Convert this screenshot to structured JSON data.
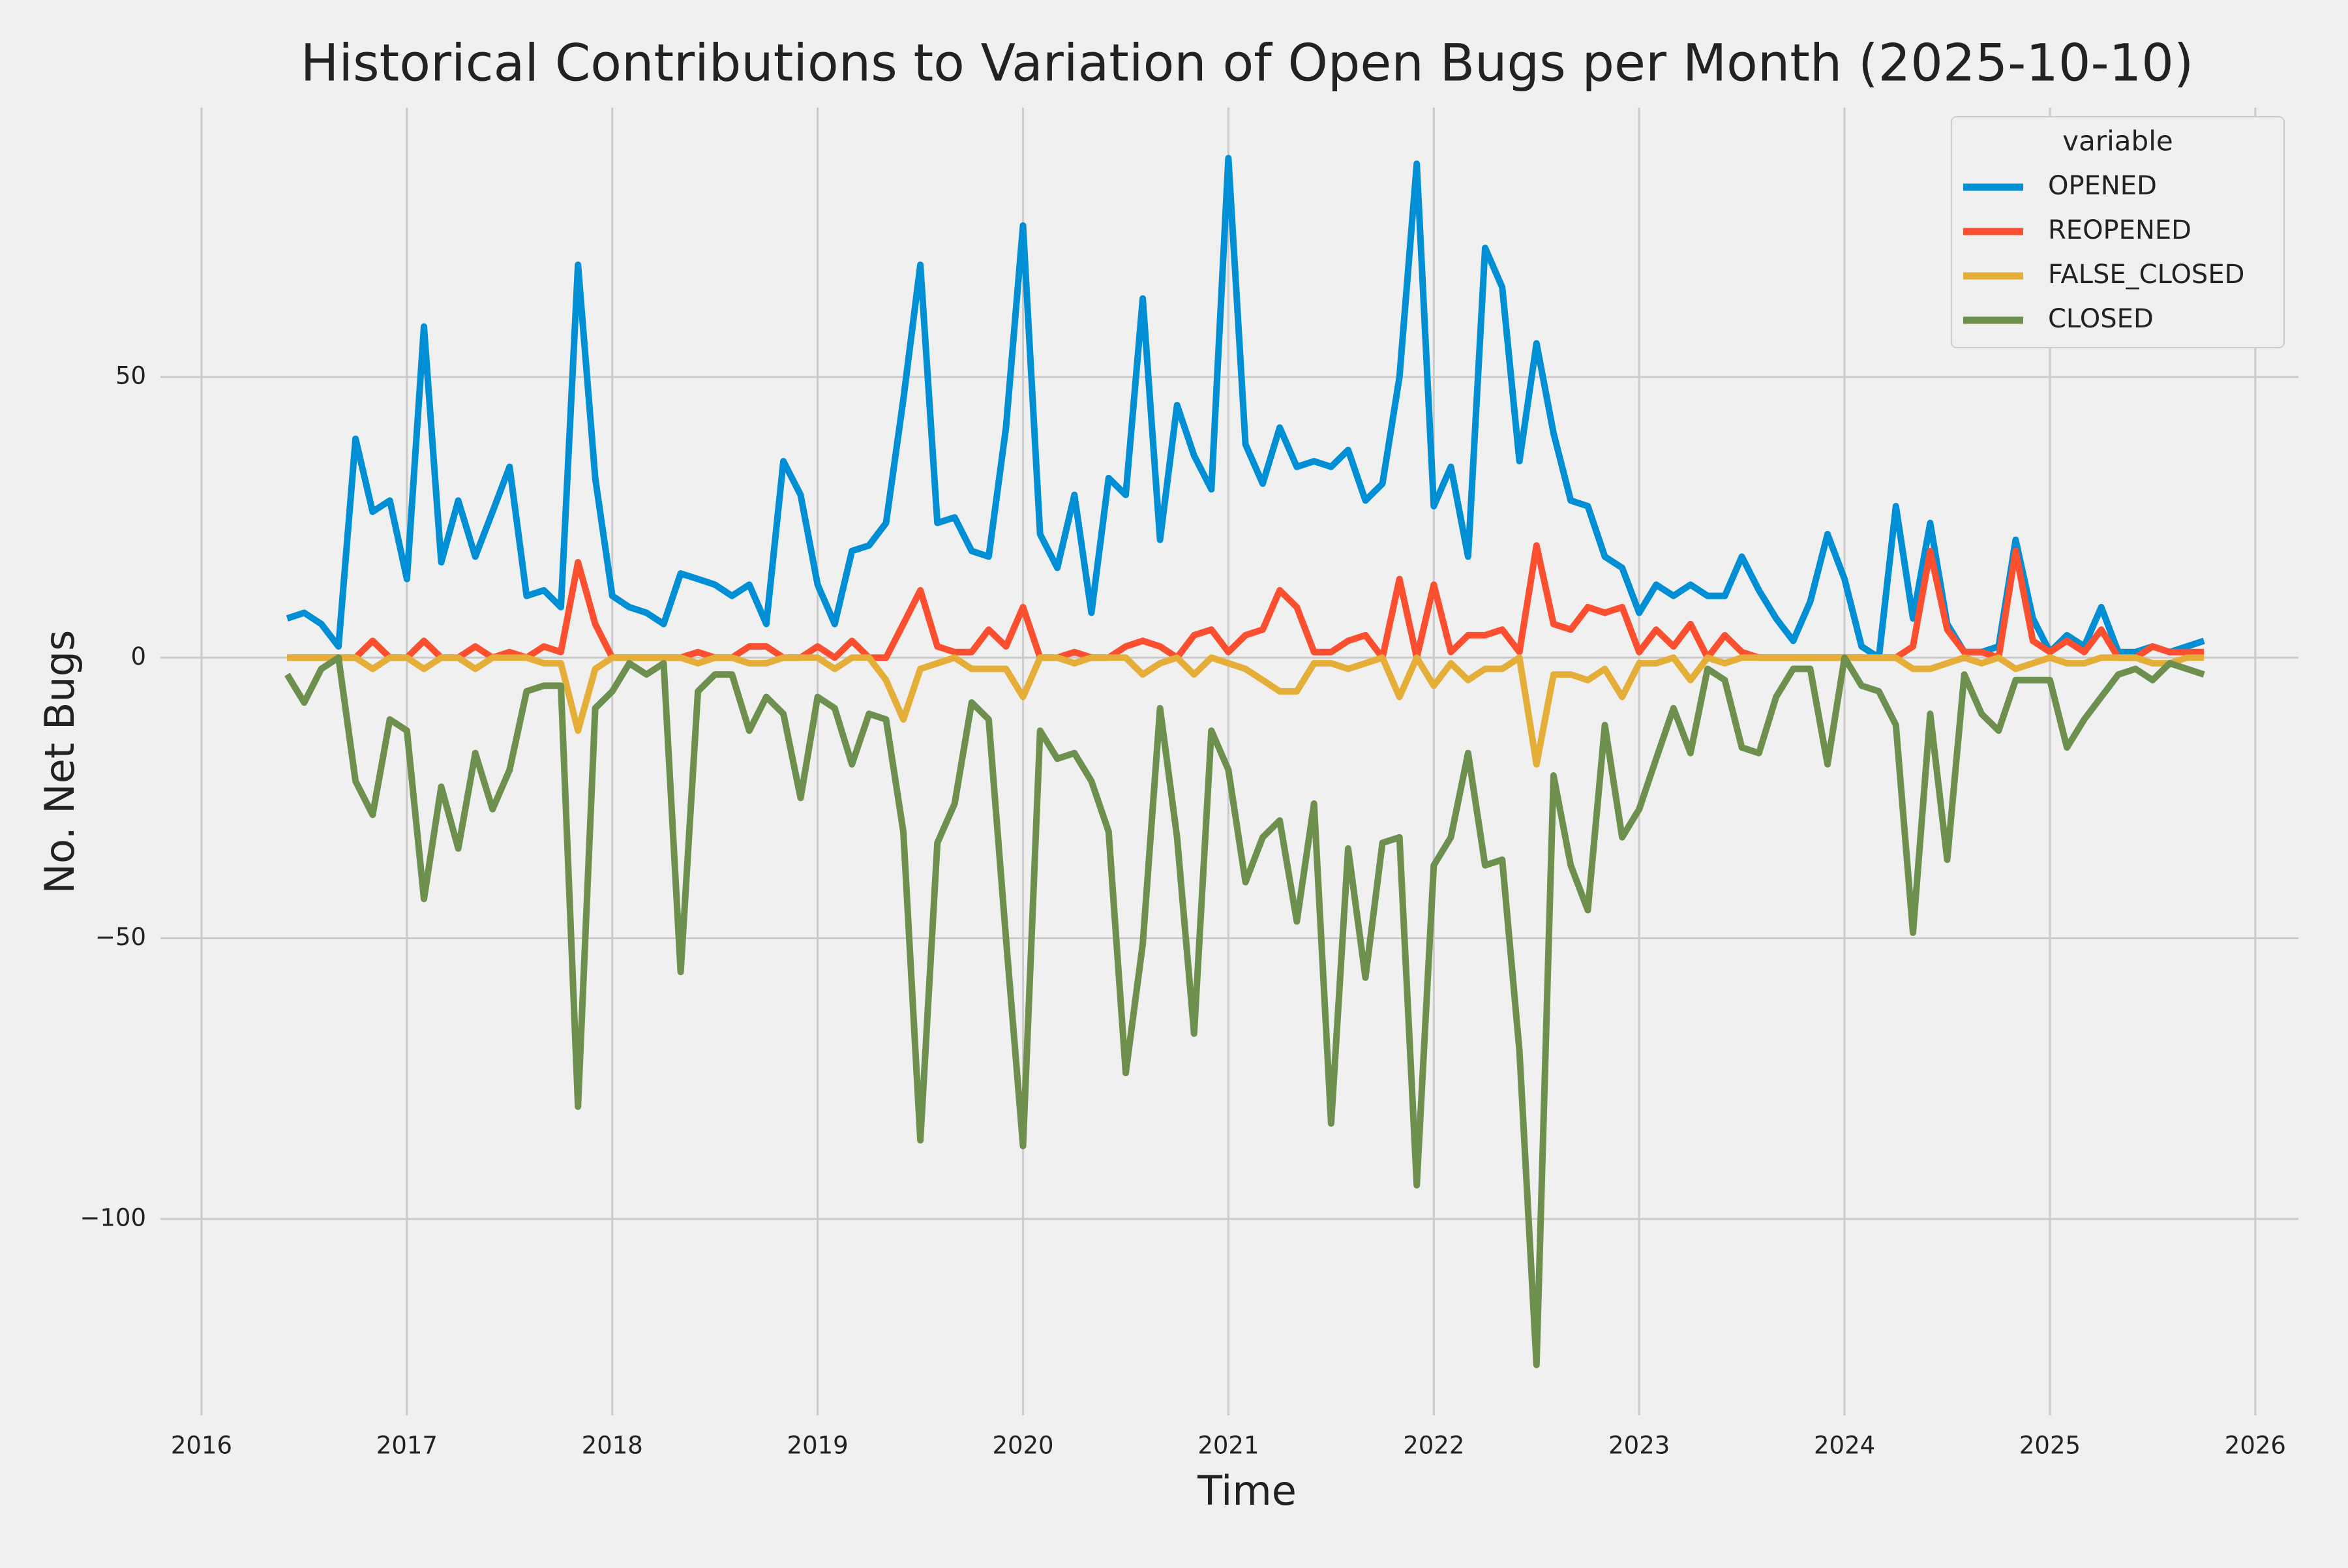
{
  "chart_data": {
    "type": "line",
    "title": "Historical Contributions to Variation of Open Bugs per Month (2025-10-10)",
    "x_label": "Time",
    "y_label": "No. Net Bugs",
    "x": [
      2016.417,
      2016.5,
      2016.583,
      2016.667,
      2016.75,
      2016.833,
      2016.917,
      2017,
      2017.083,
      2017.167,
      2017.25,
      2017.333,
      2017.417,
      2017.5,
      2017.583,
      2017.667,
      2017.75,
      2017.833,
      2017.917,
      2018,
      2018.083,
      2018.167,
      2018.25,
      2018.333,
      2018.417,
      2018.5,
      2018.583,
      2018.667,
      2018.75,
      2018.833,
      2018.917,
      2019,
      2019.083,
      2019.167,
      2019.25,
      2019.333,
      2019.417,
      2019.5,
      2019.583,
      2019.667,
      2019.75,
      2019.833,
      2019.917,
      2020,
      2020.083,
      2020.167,
      2020.25,
      2020.333,
      2020.417,
      2020.5,
      2020.583,
      2020.667,
      2020.75,
      2020.833,
      2020.917,
      2021,
      2021.083,
      2021.167,
      2021.25,
      2021.333,
      2021.417,
      2021.5,
      2021.583,
      2021.667,
      2021.75,
      2021.833,
      2021.917,
      2022,
      2022.083,
      2022.167,
      2022.25,
      2022.333,
      2022.417,
      2022.5,
      2022.583,
      2022.667,
      2022.75,
      2022.833,
      2022.917,
      2023,
      2023.083,
      2023.167,
      2023.25,
      2023.333,
      2023.417,
      2023.5,
      2023.583,
      2023.667,
      2023.75,
      2023.833,
      2023.917,
      2024,
      2024.083,
      2024.167,
      2024.25,
      2024.333,
      2024.417,
      2024.5,
      2024.583,
      2024.667,
      2024.75,
      2024.833,
      2024.917,
      2025,
      2025.083,
      2025.167,
      2025.25,
      2025.333,
      2025.417,
      2025.5,
      2025.583,
      2025.667,
      2025.75
    ],
    "series": [
      {
        "name": "OPENED",
        "color": "#008fd5",
        "values": [
          7,
          8,
          6,
          2,
          39,
          26,
          28,
          14,
          59,
          17,
          28,
          18,
          26,
          34,
          11,
          12,
          9,
          70,
          32,
          11,
          9,
          8,
          6,
          15,
          14,
          13,
          11,
          13,
          6,
          35,
          29,
          13,
          6,
          19,
          20,
          24,
          46,
          70,
          24,
          25,
          19,
          18,
          41,
          77,
          22,
          16,
          29,
          8,
          32,
          29,
          64,
          21,
          45,
          36,
          30,
          89,
          38,
          31,
          41,
          34,
          35,
          34,
          37,
          28,
          31,
          50,
          88,
          27,
          34,
          18,
          73,
          66,
          35,
          56,
          40,
          28,
          27,
          18,
          16,
          8,
          13,
          11,
          13,
          11,
          11,
          18,
          12,
          7,
          3,
          10,
          22,
          14,
          2,
          0,
          27,
          7,
          24,
          6,
          1,
          1,
          2,
          21,
          7,
          1,
          4,
          2,
          9,
          1,
          1,
          2,
          1,
          2,
          3
        ]
      },
      {
        "name": "REOPENED",
        "color": "#fc4f30",
        "values": [
          0,
          0,
          0,
          0,
          0,
          3,
          0,
          0,
          3,
          0,
          0,
          2,
          0,
          1,
          0,
          2,
          1,
          17,
          6,
          0,
          0,
          0,
          0,
          0,
          1,
          0,
          0,
          2,
          2,
          0,
          0,
          2,
          0,
          3,
          0,
          0,
          6,
          12,
          2,
          1,
          1,
          5,
          2,
          9,
          0,
          0,
          1,
          0,
          0,
          2,
          3,
          2,
          0,
          4,
          5,
          1,
          4,
          5,
          12,
          9,
          1,
          1,
          3,
          4,
          0,
          14,
          0,
          13,
          1,
          4,
          4,
          5,
          1,
          20,
          6,
          5,
          9,
          8,
          9,
          1,
          5,
          2,
          6,
          0,
          4,
          1,
          0,
          0,
          0,
          0,
          0,
          0,
          0,
          0,
          0,
          2,
          19,
          5,
          1,
          1,
          0,
          19,
          3,
          1,
          3,
          1,
          5,
          0,
          0,
          2,
          1,
          1,
          1
        ]
      },
      {
        "name": "FALSE_CLOSED",
        "color": "#e5ae38",
        "values": [
          0,
          0,
          0,
          0,
          0,
          -2,
          0,
          0,
          -2,
          0,
          0,
          -2,
          0,
          0,
          0,
          -1,
          -1,
          -13,
          -2,
          0,
          0,
          0,
          0,
          0,
          -1,
          0,
          0,
          -1,
          -1,
          0,
          0,
          0,
          -2,
          0,
          0,
          -4,
          -11,
          -2,
          -1,
          0,
          -2,
          -2,
          -2,
          -7,
          0,
          0,
          -1,
          0,
          0,
          0,
          -3,
          -1,
          0,
          -3,
          0,
          -1,
          -2,
          -4,
          -6,
          -6,
          -1,
          -1,
          -2,
          -1,
          0,
          -7,
          0,
          -5,
          -1,
          -4,
          -2,
          -2,
          0,
          -19,
          -3,
          -3,
          -4,
          -2,
          -7,
          -1,
          -1,
          0,
          -4,
          0,
          -1,
          0,
          0,
          0,
          0,
          0,
          0,
          0,
          0,
          0,
          0,
          -2,
          -2,
          -1,
          0,
          -1,
          0,
          -2,
          -1,
          0,
          -1,
          -1,
          0,
          0,
          0,
          -1,
          -1,
          0,
          0
        ]
      },
      {
        "name": "CLOSED",
        "color": "#6d904f",
        "values": [
          -3,
          -8,
          -2,
          0,
          -22,
          -28,
          -11,
          -13,
          -43,
          -23,
          -34,
          -17,
          -27,
          -20,
          -6,
          -5,
          -5,
          -80,
          -9,
          -6,
          -1,
          -3,
          -1,
          -56,
          -6,
          -3,
          -3,
          -13,
          -7,
          -10,
          -25,
          -7,
          -9,
          -19,
          -10,
          -11,
          -31,
          -86,
          -33,
          -26,
          -8,
          -11,
          -50,
          -87,
          -13,
          -18,
          -17,
          -22,
          -31,
          -74,
          -51,
          -9,
          -32,
          -67,
          -13,
          -20,
          -40,
          -32,
          -29,
          -47,
          -26,
          -83,
          -34,
          -57,
          -33,
          -32,
          -94,
          -37,
          -32,
          -17,
          -37,
          -36,
          -70,
          -126,
          -21,
          -37,
          -45,
          -12,
          -32,
          -27,
          -18,
          -9,
          -17,
          -2,
          -4,
          -16,
          -17,
          -7,
          -2,
          -2,
          -19,
          0,
          -5,
          -6,
          -12,
          -49,
          -10,
          -36,
          -3,
          -10,
          -13,
          -4,
          -4,
          -4,
          -16,
          -11,
          -7,
          -3,
          -2,
          -4,
          -1,
          -2,
          -3
        ]
      }
    ],
    "xlim": [
      2015.8,
      2026.21
    ],
    "xticks": [
      2016,
      2017,
      2018,
      2019,
      2020,
      2021,
      2022,
      2023,
      2024,
      2025,
      2026
    ],
    "ylim": [
      -135,
      98
    ],
    "yticks": [
      {
        "value": -100,
        "label": "−100"
      },
      {
        "value": -50,
        "label": "−50"
      },
      0,
      50
    ],
    "grid": true,
    "legend_title": "variable",
    "legend": "upper right"
  }
}
